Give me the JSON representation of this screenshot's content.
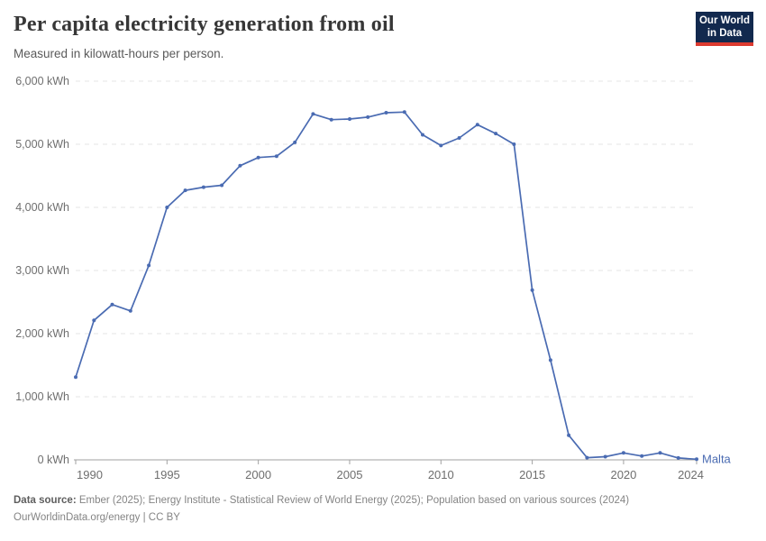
{
  "header": {
    "title": "Per capita electricity generation from oil",
    "subtitle": "Measured in kilowatt-hours per person."
  },
  "logo": {
    "line1": "Our World",
    "line2": "in Data",
    "bg_color": "#12294e",
    "accent_color": "#dc3a2f"
  },
  "chart_data": {
    "type": "line",
    "title": "Per capita electricity generation from oil",
    "entity": "Malta",
    "unit": "kWh",
    "x": [
      1990,
      1991,
      1992,
      1993,
      1994,
      1995,
      1996,
      1997,
      1998,
      1999,
      2000,
      2001,
      2002,
      2003,
      2004,
      2005,
      2006,
      2007,
      2008,
      2009,
      2010,
      2011,
      2012,
      2013,
      2014,
      2015,
      2016,
      2017,
      2018,
      2019,
      2020,
      2021,
      2022,
      2023,
      2024
    ],
    "series": [
      {
        "name": "Malta",
        "color": "#4a6bb2",
        "values": [
          1310,
          2210,
          2460,
          2360,
          3080,
          4000,
          4270,
          4320,
          4350,
          4660,
          4790,
          4810,
          5030,
          5480,
          5390,
          5400,
          5430,
          5500,
          5510,
          5150,
          4980,
          5100,
          5310,
          5170,
          5000,
          2690,
          1580,
          390,
          35,
          50,
          110,
          60,
          110,
          30,
          10
        ]
      }
    ],
    "ylim": [
      0,
      6000
    ],
    "yticks": [
      0,
      1000,
      2000,
      3000,
      4000,
      5000,
      6000
    ],
    "ytick_labels": [
      "0 kWh",
      "1,000 kWh",
      "2,000 kWh",
      "3,000 kWh",
      "4,000 kWh",
      "5,000 kWh",
      "6,000 kWh"
    ],
    "xticks": [
      1990,
      1995,
      2000,
      2005,
      2010,
      2015,
      2020,
      2024
    ],
    "grid": "horizontal-dashed",
    "legend_position": "end-of-line-label",
    "axis_color": "#a1a1a1",
    "gridline_color": "#e4e4e4",
    "tick_label_color": "#6e6e6e"
  },
  "footer": {
    "datasource_label": "Data source:",
    "datasource_text": " Ember (2025); Energy Institute - Statistical Review of World Energy (2025); Population based on various sources (2024)",
    "link_line": "OurWorldinData.org/energy | CC BY"
  }
}
